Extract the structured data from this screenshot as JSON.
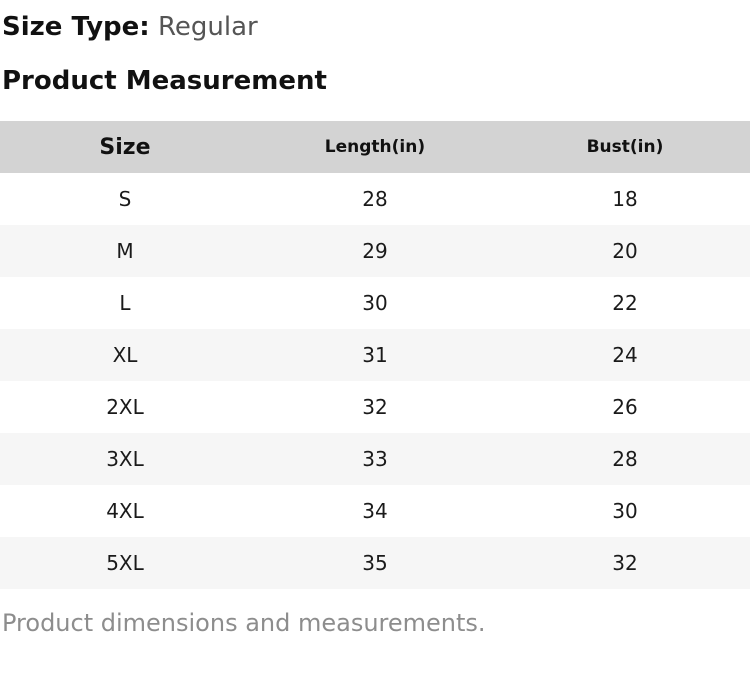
{
  "header": {
    "size_type_label": "Size Type:",
    "size_type_value": "Regular",
    "section_title": "Product Measurement"
  },
  "table": {
    "columns": [
      "Size",
      "Length(in)",
      "Bust(in)"
    ],
    "rows": [
      [
        "S",
        "28",
        "18"
      ],
      [
        "M",
        "29",
        "20"
      ],
      [
        "L",
        "30",
        "22"
      ],
      [
        "XL",
        "31",
        "24"
      ],
      [
        "2XL",
        "32",
        "26"
      ],
      [
        "3XL",
        "33",
        "28"
      ],
      [
        "4XL",
        "34",
        "30"
      ],
      [
        "5XL",
        "35",
        "32"
      ]
    ]
  },
  "footer": {
    "note": "Product dimensions and measurements."
  },
  "colors": {
    "header_bg": "#d3d3d3",
    "stripe_bg": "#f6f6f6",
    "title_text": "#111111",
    "value_text": "#555555",
    "cell_text": "#1a1a1a",
    "footer_text": "#8d8d8d"
  }
}
